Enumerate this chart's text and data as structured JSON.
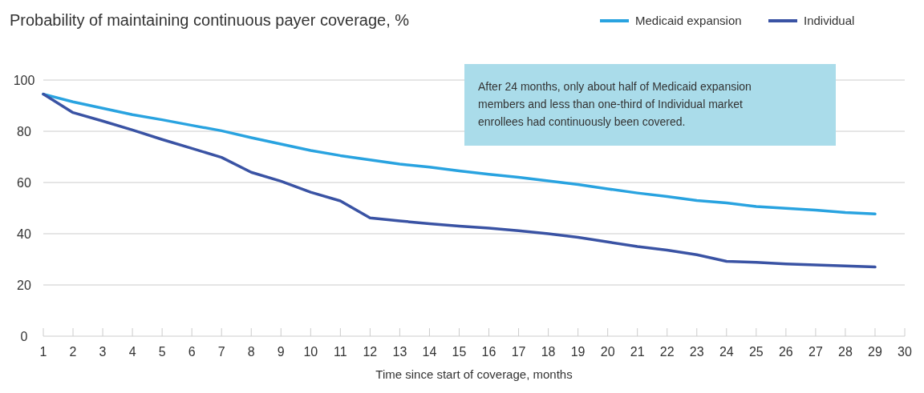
{
  "chart_data": {
    "type": "line",
    "title": "Probability of maintaining continuous payer coverage, %",
    "xlabel": "Time since start of coverage, months",
    "x": [
      1,
      2,
      3,
      4,
      5,
      6,
      7,
      8,
      9,
      10,
      11,
      12,
      13,
      14,
      15,
      16,
      17,
      18,
      19,
      20,
      21,
      22,
      23,
      24,
      25,
      26,
      27,
      28,
      29
    ],
    "series": [
      {
        "name": "Medicaid expansion",
        "color": "#29a3e0",
        "values": [
          94.5,
          91.5,
          89,
          86.5,
          84.5,
          82.3,
          80.2,
          77.5,
          75,
          72.5,
          70.5,
          68.8,
          67.2,
          66,
          64.5,
          63.2,
          62,
          60.6,
          59.2,
          57.5,
          55.9,
          54.5,
          53,
          52,
          50.6,
          49.9,
          49.2,
          48.3,
          47.7
        ]
      },
      {
        "name": "Individual",
        "color": "#3a53a4",
        "values": [
          94.5,
          87.3,
          84,
          80.5,
          76.8,
          73.3,
          69.8,
          64,
          60.5,
          56.2,
          52.8,
          46.2,
          45,
          43.9,
          43,
          42.2,
          41.2,
          40,
          38.6,
          36.8,
          35,
          33.6,
          31.8,
          29.2,
          28.8,
          28.2,
          27.8,
          27.4,
          27
        ]
      }
    ],
    "xlim": [
      1,
      30
    ],
    "xticks": [
      1,
      2,
      3,
      4,
      5,
      6,
      7,
      8,
      9,
      10,
      11,
      12,
      13,
      14,
      15,
      16,
      17,
      18,
      19,
      20,
      21,
      22,
      23,
      24,
      25,
      26,
      27,
      28,
      29,
      30
    ],
    "ylim": [
      0,
      100
    ],
    "yticks": [
      0,
      20,
      40,
      60,
      80,
      100
    ],
    "grid": "y",
    "legend": "top right",
    "line_style": "solid",
    "marker": "none",
    "annotations": [
      "After 24 months, only about half of Medicaid expansion members and less than one-third of Individual market enrollees had continuously been covered."
    ]
  }
}
